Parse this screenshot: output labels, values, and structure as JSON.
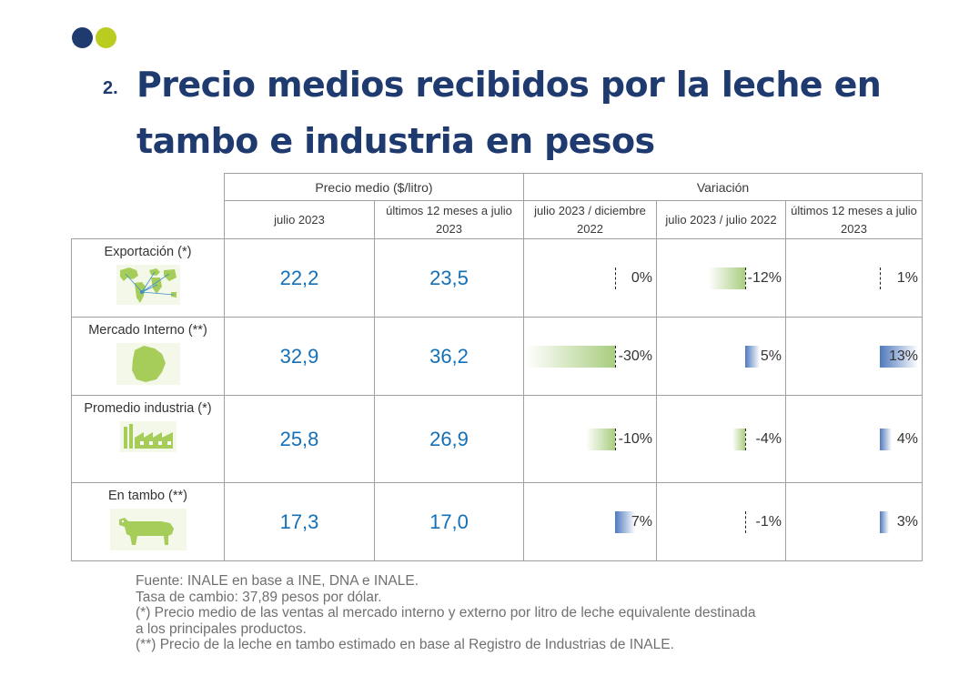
{
  "colors": {
    "dot_navy": "#1f3a6e",
    "dot_lime": "#b9cc1f",
    "title": "#1f3a6e",
    "value": "#1470b8",
    "bar_green": "#a9cd7f",
    "bar_blue": "#4f79bd"
  },
  "title": {
    "number": "2.",
    "text": "Precio medios recibidos por la leche en tambo e industria en pesos"
  },
  "table": {
    "group_headers": {
      "price": "Precio medio ($/litro)",
      "variation": "Variación"
    },
    "columns": [
      "julio 2023",
      "últimos 12 meses a julio 2023",
      "julio 2023 / diciembre 2022",
      "julio 2023 / julio 2022",
      "últimos 12 meses a julio 2023"
    ],
    "rows": [
      {
        "label": "Exportación (*)",
        "icon": "world-map-icon",
        "price_july": "22,2",
        "price_12m": "23,5",
        "var_dec": "0%",
        "var_dec_value": 0,
        "var_yoy": "-12%",
        "var_yoy_value": -12,
        "var_12m": "1%",
        "var_12m_value": 1
      },
      {
        "label": "Mercado Interno (**)",
        "icon": "uruguay-map-icon",
        "price_july": "32,9",
        "price_12m": "36,2",
        "var_dec": "-30%",
        "var_dec_value": -30,
        "var_yoy": "5%",
        "var_yoy_value": 5,
        "var_12m": "13%",
        "var_12m_value": 13
      },
      {
        "label": "Promedio industria (*)",
        "icon": "factory-icon",
        "price_july": "25,8",
        "price_12m": "26,9",
        "var_dec": "-10%",
        "var_dec_value": -10,
        "var_yoy": "-4%",
        "var_yoy_value": -4,
        "var_12m": "4%",
        "var_12m_value": 4
      },
      {
        "label": "En tambo (**)",
        "icon": "cow-icon",
        "price_july": "17,3",
        "price_12m": "17,0",
        "var_dec": "7%",
        "var_dec_value": 7,
        "var_yoy": "-1%",
        "var_yoy_value": -1,
        "var_12m": "3%",
        "var_12m_value": 3
      }
    ]
  },
  "notes": [
    "Fuente: INALE en base a INE, DNA e INALE.",
    "Tasa de cambio: 37,89 pesos por dólar.",
    "(*) Precio medio de las ventas al mercado interno y externo por litro de leche equivalente destinada",
    "a los principales productos.",
    "(**) Precio de la leche en tambo estimado en base al Registro de Industrias de INALE."
  ]
}
